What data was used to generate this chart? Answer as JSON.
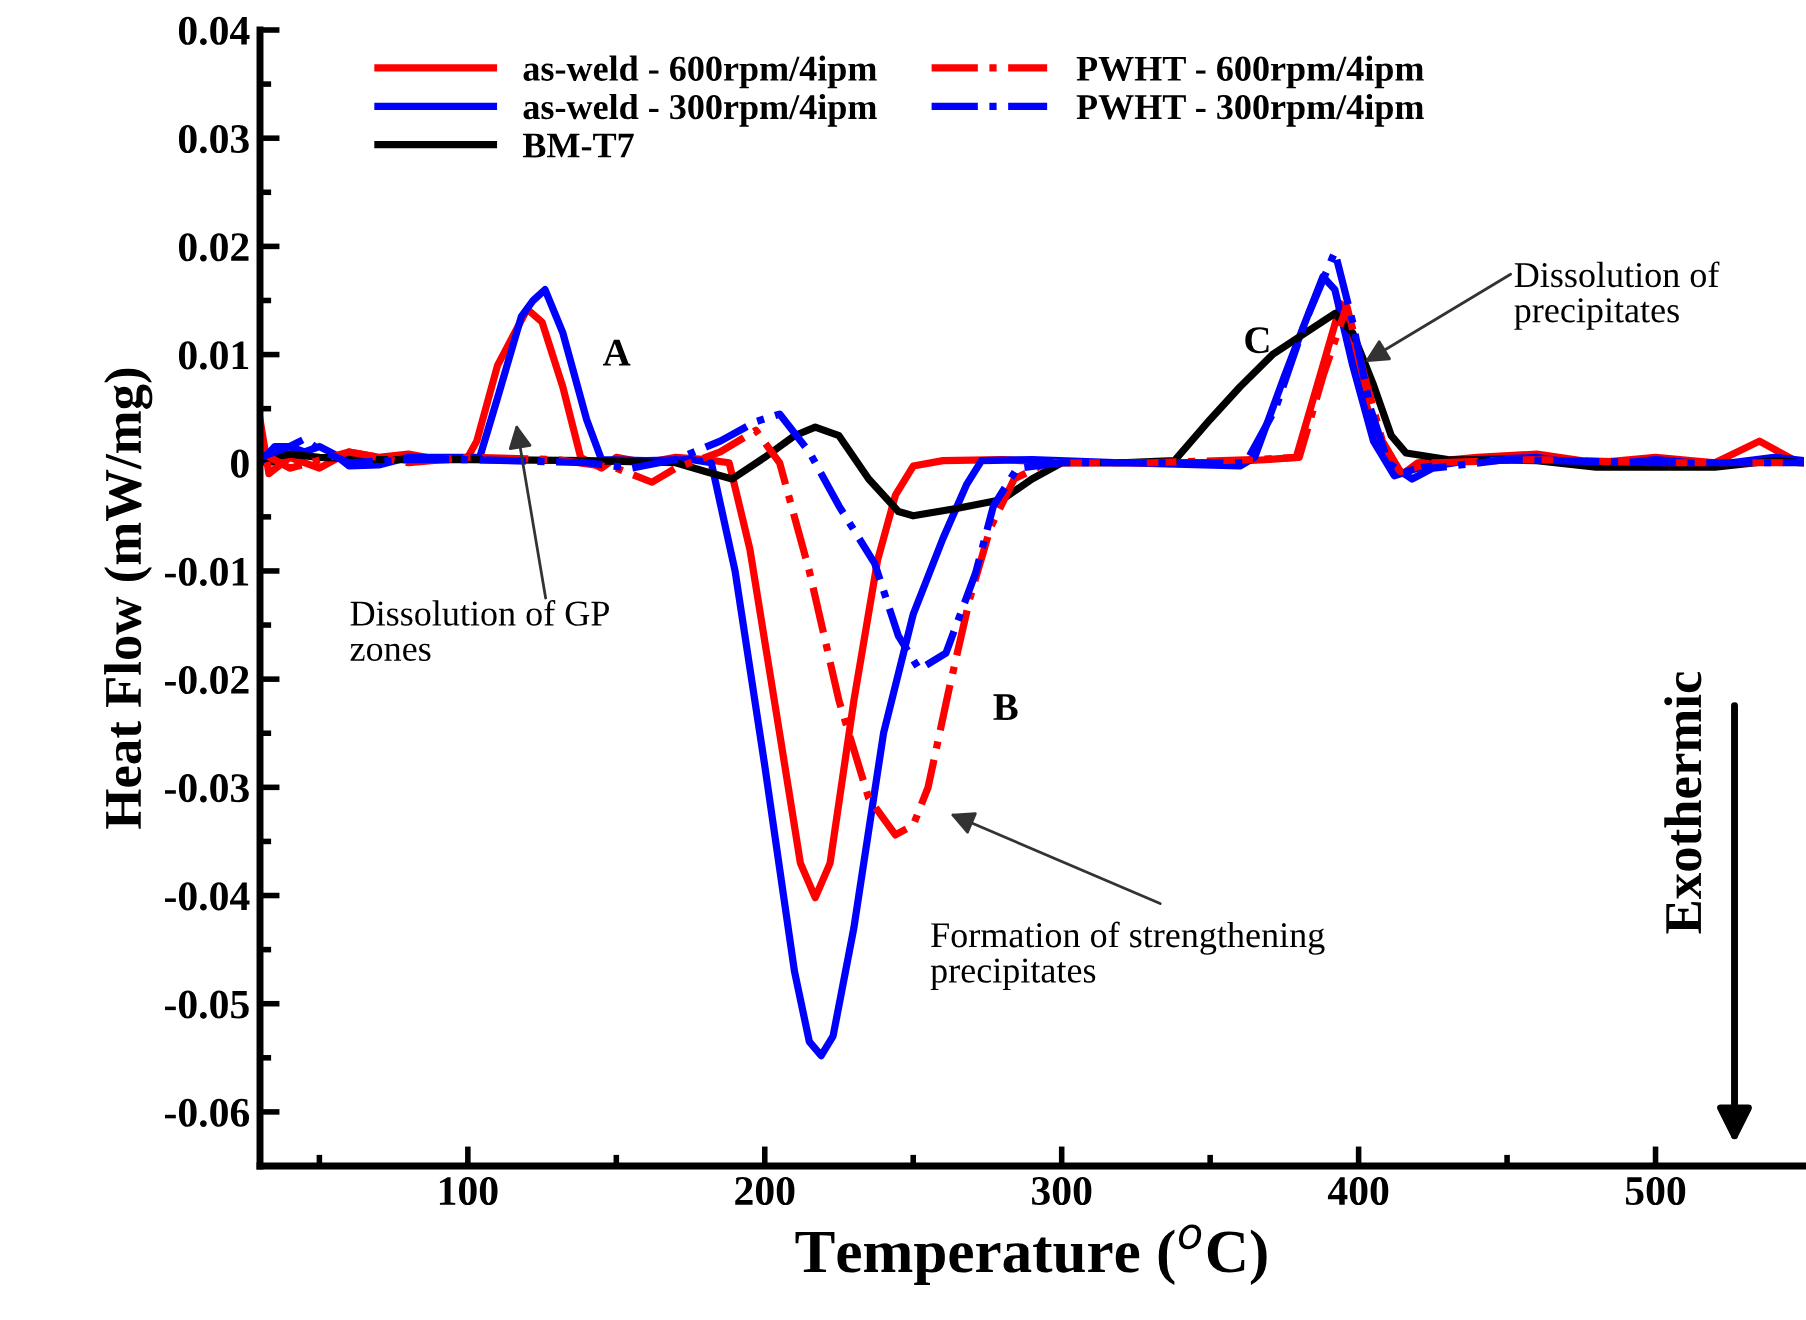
{
  "chart_data": {
    "type": "line",
    "xlabel": "Temperature ($^{o}$C)",
    "ylabel": "Heat Flow (mW/mg)",
    "xlim": [
      30,
      550
    ],
    "ylim": [
      -0.065,
      0.04
    ],
    "xticks": [
      {
        "value": 50,
        "label": null
      },
      100,
      {
        "value": 150,
        "label": null
      },
      200,
      {
        "value": 250,
        "label": null
      },
      300,
      {
        "value": 350,
        "label": null
      },
      400,
      {
        "value": 450,
        "label": null
      },
      500
    ],
    "yticks": [
      -0.06,
      {
        "value": -0.055,
        "label": null
      },
      -0.05,
      {
        "value": -0.045,
        "label": null
      },
      -0.04,
      {
        "value": -0.035,
        "label": null
      },
      -0.03,
      {
        "value": -0.025,
        "label": null
      },
      -0.02,
      {
        "value": -0.015,
        "label": null
      },
      -0.01,
      {
        "value": -0.005,
        "label": null
      },
      0,
      {
        "value": 0.005,
        "label": null
      },
      0.01,
      {
        "value": 0.015,
        "label": null
      },
      0.02,
      {
        "value": 0.025,
        "label": null
      },
      0.03,
      {
        "value": 0.035,
        "label": null
      },
      0.04
    ],
    "grid": false,
    "legend": "top left",
    "marker": "none",
    "series": [
      {
        "name": "as-weld - 600rpm/4ipm",
        "color": "#ff0000",
        "line_style": "solid",
        "x": [
          30,
          33,
          40,
          50,
          60,
          70,
          80,
          90,
          100,
          103,
          110,
          120,
          125,
          132,
          138,
          145,
          150,
          160,
          170,
          180,
          188,
          195,
          205,
          212,
          217,
          222,
          230,
          238,
          244,
          250,
          260,
          280,
          300,
          350,
          370,
          379,
          388,
          394,
          400,
          405,
          411,
          415,
          420,
          440,
          460,
          480,
          500,
          520,
          535,
          545
        ],
        "values": [
          0.004,
          -0.001,
          0.0005,
          -0.0005,
          0.001,
          0.0005,
          0.0008,
          0.0003,
          0.0005,
          0.002,
          0.009,
          0.0142,
          0.013,
          0.007,
          0.0005,
          -0.0005,
          0.0005,
          0.0,
          0.0005,
          0.0003,
          0.0,
          -0.008,
          -0.025,
          -0.037,
          -0.0402,
          -0.037,
          -0.022,
          -0.009,
          -0.003,
          -0.0003,
          0.0002,
          0.0003,
          0.0,
          0.0,
          0.0003,
          0.0005,
          0.009,
          0.0147,
          0.008,
          0.003,
          0.0,
          -0.001,
          0.0,
          0.0005,
          0.0008,
          0.0,
          0.0005,
          0.0,
          0.002,
          0.0005
        ]
      },
      {
        "name": "as-weld - 300rpm/4ipm",
        "color": "#0000ff",
        "line_style": "solid",
        "x": [
          30,
          35,
          40,
          45,
          50,
          55,
          60,
          70,
          80,
          90,
          104,
          110,
          118,
          122,
          126,
          132,
          140,
          145,
          160,
          175,
          182,
          190,
          200,
          210,
          215,
          219,
          223,
          230,
          240,
          250,
          260,
          268,
          273,
          290,
          320,
          360,
          365,
          375,
          382,
          388,
          392,
          398,
          405,
          412,
          420,
          440,
          460,
          480,
          500,
          520,
          540,
          550
        ],
        "values": [
          0.0,
          0.0015,
          0.0015,
          0.001,
          0.0015,
          0.0008,
          -0.0003,
          -0.0002,
          0.0005,
          0.0005,
          0.0005,
          0.006,
          0.0135,
          0.015,
          0.016,
          0.012,
          0.004,
          0.0003,
          0.0002,
          0.0003,
          0.0,
          -0.01,
          -0.028,
          -0.047,
          -0.0535,
          -0.0548,
          -0.053,
          -0.043,
          -0.025,
          -0.014,
          -0.007,
          -0.002,
          0.0002,
          0.0003,
          0.0,
          -0.0003,
          0.0005,
          0.008,
          0.013,
          0.0172,
          0.016,
          0.009,
          0.002,
          -0.0012,
          -0.0005,
          0.0003,
          0.0005,
          -0.0003,
          0.0003,
          -0.0002,
          0.0005,
          0.0002
        ]
      },
      {
        "name": "BM-T7",
        "color": "#000000",
        "line_style": "solid",
        "x": [
          30,
          40,
          50,
          70,
          100,
          140,
          170,
          180,
          189,
          200,
          210,
          217,
          225,
          235,
          245,
          250,
          265,
          280,
          290,
          300,
          320,
          338,
          350,
          360,
          371,
          382,
          392,
          398,
          405,
          411,
          416,
          430,
          460,
          480,
          520,
          540,
          550
        ],
        "values": [
          0.0003,
          0.0008,
          0.0005,
          0.0003,
          0.0003,
          0.0002,
          0.0,
          -0.0008,
          -0.0015,
          0.0005,
          0.0025,
          0.0033,
          0.0025,
          -0.0015,
          -0.0045,
          -0.0049,
          -0.0042,
          -0.0034,
          -0.0015,
          0.0,
          0.0,
          0.0002,
          0.004,
          0.007,
          0.01,
          0.012,
          0.0138,
          0.012,
          0.0072,
          0.0025,
          0.0009,
          0.0003,
          0.0002,
          -0.0004,
          -0.0004,
          0.0002,
          0.0
        ]
      },
      {
        "name": "PWHT - 600rpm/4ipm",
        "color": "#ff0000",
        "line_style": "dashdot",
        "x": [
          30,
          40,
          60,
          80,
          100,
          130,
          150,
          162,
          170,
          185,
          197,
          205,
          215,
          225,
          235,
          244,
          250,
          255,
          262,
          269,
          276,
          284,
          295,
          330,
          365,
          380,
          388,
          396,
          402,
          408,
          414,
          425,
          460,
          500,
          550
        ],
        "values": [
          0.001,
          -0.0005,
          0.001,
          0.0,
          0.0005,
          0.0003,
          -0.0005,
          -0.0018,
          -0.0005,
          0.001,
          0.003,
          0.0,
          -0.01,
          -0.022,
          -0.031,
          -0.0344,
          -0.0335,
          -0.03,
          -0.021,
          -0.0126,
          -0.006,
          -0.0015,
          0.0,
          0.0,
          0.0003,
          0.0005,
          0.008,
          0.0145,
          0.008,
          0.002,
          -0.0008,
          0.0,
          0.0003,
          0.0,
          0.0
        ]
      },
      {
        "name": "PWHT - 300rpm/4ipm",
        "color": "#0000ff",
        "line_style": "dashdot",
        "x": [
          30,
          40,
          45,
          50,
          60,
          80,
          100,
          140,
          155,
          170,
          185,
          197,
          205,
          215,
          225,
          237,
          245,
          252,
          261,
          271,
          277,
          285,
          300,
          350,
          362,
          372,
          382,
          392,
          398,
          404,
          410,
          418,
          425,
          450,
          500,
          550
        ],
        "values": [
          0.0005,
          0.0015,
          0.0022,
          0.0012,
          0.0,
          0.0003,
          0.0003,
          0.0,
          -0.0005,
          0.0003,
          0.002,
          0.0038,
          0.0045,
          0.001,
          -0.004,
          -0.0093,
          -0.016,
          -0.0191,
          -0.0176,
          -0.0102,
          -0.004,
          -0.0005,
          0.0,
          0.0,
          0.0,
          0.005,
          0.013,
          0.0195,
          0.013,
          0.005,
          0.0,
          -0.0015,
          -0.0005,
          0.0003,
          0.0,
          0.0
        ]
      }
    ],
    "annotations": [
      "A",
      "B",
      "C",
      "Dissolution of GP\nzones",
      "Formation of strengthening\nprecipitates",
      {
        "text": "Dissolution of\nprecipitates",
        "x": 402,
        "y": 0.0093
      },
      "Exothermic"
    ]
  }
}
